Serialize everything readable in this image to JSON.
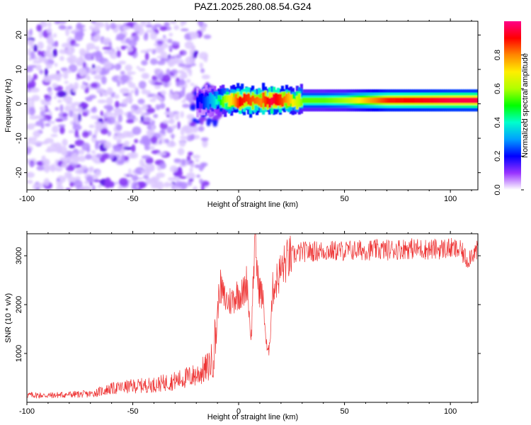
{
  "chart_data": [
    {
      "type": "heatmap",
      "title": "PAZ1.2025.280.08.54.G24",
      "xlabel": "Height of straight line (km)",
      "ylabel": "Frequency (Hz)",
      "xlim": [
        -100,
        113
      ],
      "ylim": [
        -25,
        24
      ],
      "x_ticks": [
        -100,
        -50,
        0,
        50,
        100
      ],
      "x_tick_labels": [
        "-100",
        "-50",
        "0",
        "50",
        "100"
      ],
      "y_ticks": [
        -20,
        -10,
        0,
        10,
        20
      ],
      "y_tick_labels": [
        "-20",
        "-10",
        "0",
        "10",
        "20"
      ],
      "colorbar": {
        "label": "Normalized spectral amplitude",
        "range": [
          0,
          1
        ],
        "ticks": [
          0.0,
          0.2,
          0.4,
          0.6,
          0.8
        ],
        "tick_labels": [
          "0.0",
          "0.2",
          "0.4",
          "0.6",
          "0.8"
        ]
      },
      "noise_region_km": [
        -100,
        -20
      ],
      "signal_line_freq_hz": 1,
      "signal_profile": [
        {
          "x": -18,
          "amp": 0.2
        },
        {
          "x": -12,
          "amp": 0.35
        },
        {
          "x": -8,
          "amp": 0.55
        },
        {
          "x": -3,
          "amp": 0.75
        },
        {
          "x": 0,
          "amp": 0.9
        },
        {
          "x": 5,
          "amp": 0.85
        },
        {
          "x": 10,
          "amp": 0.8
        },
        {
          "x": 15,
          "amp": 0.95
        },
        {
          "x": 20,
          "amp": 0.85
        },
        {
          "x": 25,
          "amp": 0.7
        },
        {
          "x": 30,
          "amp": 0.55
        },
        {
          "x": 40,
          "amp": 0.55
        },
        {
          "x": 50,
          "amp": 0.6
        },
        {
          "x": 60,
          "amp": 0.75
        },
        {
          "x": 70,
          "amp": 0.88
        },
        {
          "x": 80,
          "amp": 0.9
        },
        {
          "x": 90,
          "amp": 0.92
        },
        {
          "x": 100,
          "amp": 0.95
        },
        {
          "x": 113,
          "amp": 0.95
        }
      ]
    },
    {
      "type": "line",
      "xlabel": "Height of straight line (km)",
      "ylabel": "SNR (10 * v/v)",
      "xlim": [
        -100,
        113
      ],
      "ylim": [
        0,
        3450
      ],
      "x_ticks": [
        -100,
        -50,
        0,
        50,
        100
      ],
      "x_tick_labels": [
        "-100",
        "-50",
        "0",
        "50",
        "100"
      ],
      "y_ticks": [
        1000,
        2000,
        3000
      ],
      "y_tick_labels": [
        "1000",
        "2000",
        "3000"
      ],
      "series": [
        {
          "name": "SNR",
          "color": "#ee3333",
          "x": [
            -100,
            -90,
            -80,
            -70,
            -60,
            -50,
            -40,
            -30,
            -20,
            -15,
            -12,
            -10,
            -9,
            -7,
            -5,
            -3,
            0,
            2,
            4,
            5,
            6,
            7,
            8,
            9,
            10,
            11,
            12,
            13,
            14,
            15,
            16,
            18,
            20,
            22,
            25,
            30,
            40,
            50,
            60,
            70,
            80,
            90,
            100,
            105,
            108,
            110,
            113
          ],
          "y": [
            150,
            140,
            160,
            170,
            280,
            330,
            360,
            440,
            560,
            700,
            900,
            1800,
            2400,
            2150,
            2050,
            2100,
            2250,
            2200,
            2500,
            1800,
            1300,
            2700,
            3300,
            2500,
            2300,
            2200,
            1900,
            1200,
            950,
            1500,
            2300,
            2500,
            2700,
            2850,
            3000,
            3080,
            3100,
            3100,
            3120,
            3120,
            3150,
            3130,
            3150,
            3100,
            2900,
            3050,
            3100
          ]
        }
      ]
    }
  ]
}
